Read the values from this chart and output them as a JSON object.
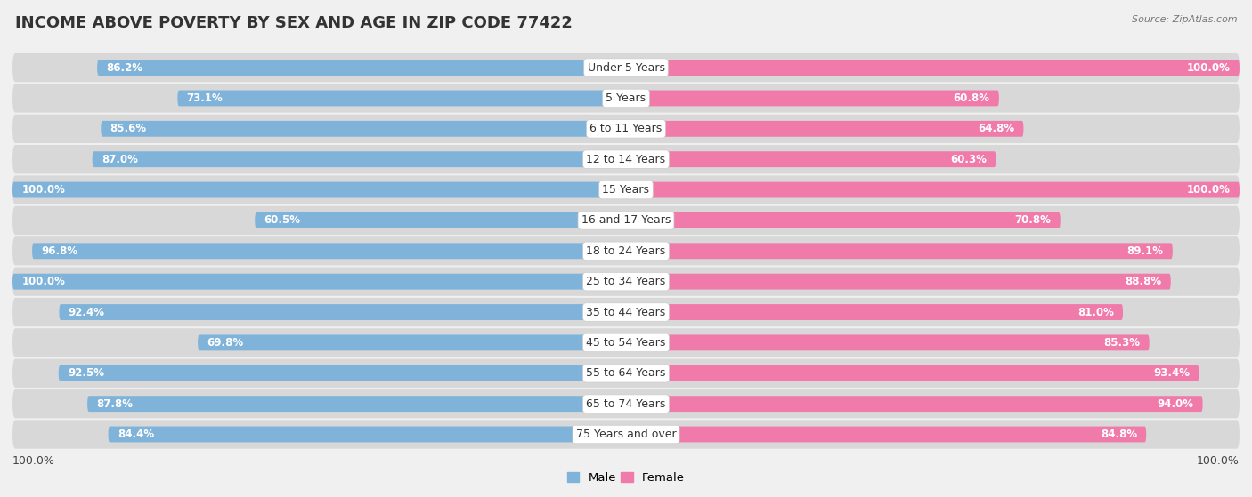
{
  "title": "INCOME ABOVE POVERTY BY SEX AND AGE IN ZIP CODE 77422",
  "source": "Source: ZipAtlas.com",
  "categories": [
    "Under 5 Years",
    "5 Years",
    "6 to 11 Years",
    "12 to 14 Years",
    "15 Years",
    "16 and 17 Years",
    "18 to 24 Years",
    "25 to 34 Years",
    "35 to 44 Years",
    "45 to 54 Years",
    "55 to 64 Years",
    "65 to 74 Years",
    "75 Years and over"
  ],
  "male_values": [
    86.2,
    73.1,
    85.6,
    87.0,
    100.0,
    60.5,
    96.8,
    100.0,
    92.4,
    69.8,
    92.5,
    87.8,
    84.4
  ],
  "female_values": [
    100.0,
    60.8,
    64.8,
    60.3,
    100.0,
    70.8,
    89.1,
    88.8,
    81.0,
    85.3,
    93.4,
    94.0,
    84.8
  ],
  "male_color": "#7fb3d9",
  "female_color": "#f07aaa",
  "background_color": "#f0f0f0",
  "row_bg_color": "#dcdcdc",
  "title_fontsize": 13,
  "label_fontsize": 9,
  "value_fontsize": 8.5,
  "legend_fontsize": 9.5
}
